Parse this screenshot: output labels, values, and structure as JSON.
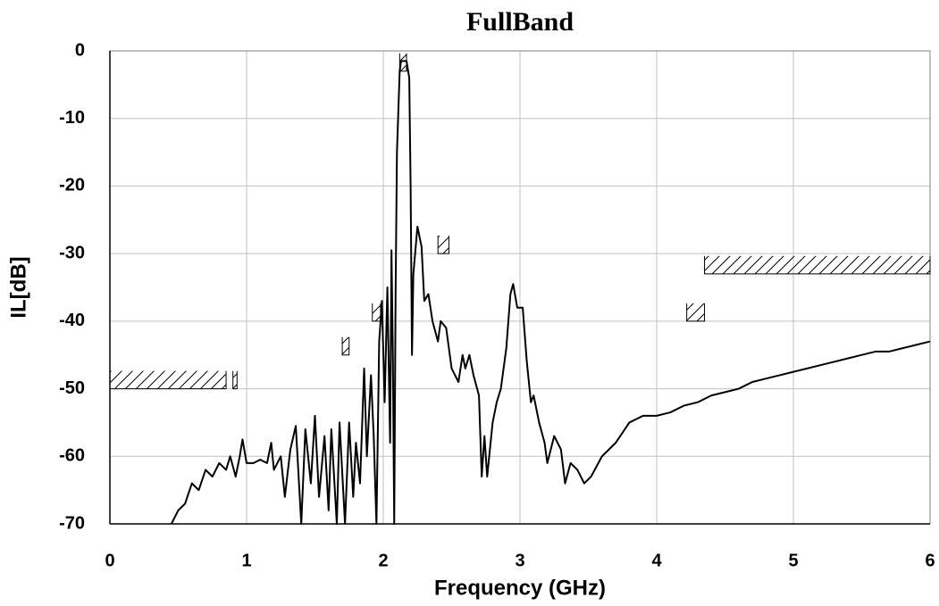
{
  "chart_data": {
    "type": "line",
    "title": "FullBand",
    "xlabel": "Frequency (GHz)",
    "ylabel": "IL[dB]",
    "xlim": [
      0,
      6
    ],
    "xticks": [
      0,
      1,
      2,
      3,
      4,
      5,
      6
    ],
    "ylim": [
      -70,
      0
    ],
    "yticks": [
      -70,
      -60,
      -50,
      -40,
      -30,
      -20,
      -10,
      0
    ],
    "grid": true,
    "x": [
      0.45,
      0.5,
      0.55,
      0.6,
      0.65,
      0.7,
      0.75,
      0.8,
      0.85,
      0.88,
      0.92,
      0.95,
      0.97,
      1.0,
      1.05,
      1.1,
      1.15,
      1.18,
      1.2,
      1.25,
      1.28,
      1.32,
      1.36,
      1.4,
      1.43,
      1.47,
      1.5,
      1.53,
      1.57,
      1.6,
      1.62,
      1.66,
      1.68,
      1.72,
      1.75,
      1.78,
      1.8,
      1.83,
      1.86,
      1.88,
      1.91,
      1.93,
      1.95,
      1.97,
      1.99,
      2.01,
      2.03,
      2.05,
      2.06,
      2.07,
      2.08,
      2.09,
      2.1,
      2.12,
      2.13,
      2.17,
      2.19,
      2.2,
      2.21,
      2.22,
      2.25,
      2.28,
      2.3,
      2.33,
      2.36,
      2.4,
      2.42,
      2.46,
      2.5,
      2.55,
      2.58,
      2.6,
      2.63,
      2.66,
      2.7,
      2.72,
      2.74,
      2.76,
      2.8,
      2.83,
      2.86,
      2.9,
      2.93,
      2.95,
      2.98,
      3.02,
      3.05,
      3.08,
      3.1,
      3.14,
      3.18,
      3.2,
      3.25,
      3.3,
      3.33,
      3.37,
      3.42,
      3.47,
      3.52,
      3.6,
      3.7,
      3.8,
      3.9,
      4.0,
      4.1,
      4.2,
      4.3,
      4.4,
      4.5,
      4.6,
      4.7,
      4.8,
      4.9,
      5.0,
      5.1,
      5.2,
      5.3,
      5.4,
      5.5,
      5.6,
      5.7,
      5.8,
      5.9,
      6.0
    ],
    "series": [
      {
        "color": "#000000",
        "values": [
          -70,
          -68,
          -67,
          -64,
          -65,
          -62,
          -63,
          -61,
          -62,
          -60,
          -63,
          -60,
          -57.5,
          -61,
          -61,
          -60.5,
          -61,
          -58,
          -62,
          -60,
          -66,
          -59,
          -55.5,
          -70,
          -56,
          -64,
          -54,
          -66,
          -57,
          -68,
          -56,
          -70,
          -55,
          -70,
          -55,
          -66,
          -58,
          -64,
          -47,
          -60,
          -48,
          -57,
          -70,
          -43,
          -37,
          -52,
          -35,
          -58,
          -29.5,
          -45,
          -70,
          -36,
          -15,
          -3,
          -1.5,
          -1.5,
          -4,
          -20,
          -45,
          -33,
          -26,
          -29,
          -37,
          -36,
          -40,
          -43,
          -40,
          -41,
          -47,
          -49,
          -45,
          -47,
          -45,
          -48,
          -51,
          -63,
          -57,
          -63,
          -55,
          -52,
          -50,
          -44,
          -36,
          -34.5,
          -38,
          -38,
          -46,
          -52,
          -51,
          -55,
          -58,
          -61,
          -57,
          -59,
          -64,
          -61,
          -62,
          -64,
          -63,
          -60,
          -58,
          -55,
          -54,
          -54,
          -53.5,
          -52.5,
          -52,
          -51,
          -50.5,
          -50,
          -49,
          -48.5,
          -48,
          -47.5,
          -47,
          -46.5,
          -46,
          -45.5,
          -45,
          -44.5,
          -44.5,
          -44,
          -43.5,
          -43
        ]
      }
    ],
    "limits": [
      {
        "x": [
          0,
          0.85
        ],
        "value": -50
      },
      {
        "x": [
          0.9,
          0.93
        ],
        "value": -50
      },
      {
        "x": [
          1.7,
          1.75
        ],
        "value": -45
      },
      {
        "x": [
          1.92,
          1.98
        ],
        "value": -40
      },
      {
        "x": [
          2.12,
          2.17
        ],
        "value": -3
      },
      {
        "x": [
          2.4,
          2.48
        ],
        "value": -30
      },
      {
        "x": [
          4.22,
          4.35
        ],
        "value": -40
      },
      {
        "x": [
          4.35,
          6
        ],
        "value": -33
      }
    ]
  }
}
